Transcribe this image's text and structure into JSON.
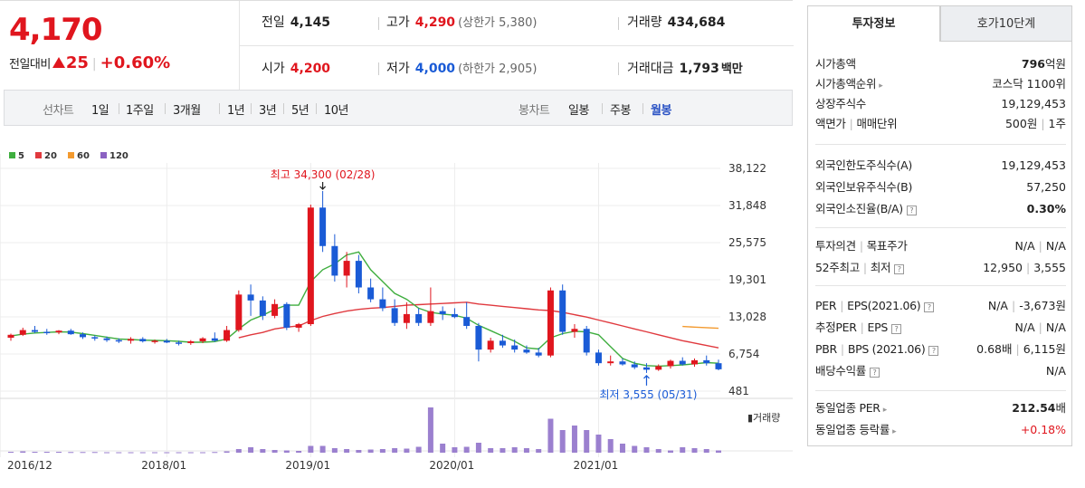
{
  "quote": {
    "price": "4,170",
    "change_label": "전일대비",
    "change_amount": "25",
    "change_pct": "+0.60%",
    "prev_close": {
      "label": "전일",
      "value": "4,145"
    },
    "high": {
      "label": "고가",
      "value": "4,290",
      "sub": "(상한가 5,380)"
    },
    "volume": {
      "label": "거래량",
      "value": "434,684"
    },
    "open": {
      "label": "시가",
      "value": "4,200"
    },
    "low": {
      "label": "저가",
      "value": "4,000",
      "sub": "(하한가 2,905)"
    },
    "amount": {
      "label": "거래대금",
      "value": "1,793",
      "unit": "백만"
    }
  },
  "period_bar": {
    "line_label": "선차트",
    "line_periods": [
      "1일",
      "1주일",
      "3개월",
      "1년",
      "3년",
      "5년",
      "10년"
    ],
    "candle_label": "봉차트",
    "candle_periods": [
      "일봉",
      "주봉",
      "월봉"
    ],
    "active_candle": "월봉"
  },
  "tabs": {
    "active": "투자정보",
    "other": "호가10단계"
  },
  "info": {
    "market_cap": {
      "label": "시가총액",
      "value": "796",
      "unit": "억원"
    },
    "market_cap_rank": {
      "label": "시가총액순위",
      "value": "코스닥 1100위"
    },
    "listed_shares": {
      "label": "상장주식수",
      "value": "19,129,453"
    },
    "face_value": {
      "label1": "액면가",
      "label2": "매매단위",
      "value1": "500원",
      "value2": "1주"
    },
    "foreign_limit": {
      "label": "외국인한도주식수(A)",
      "value": "19,129,453"
    },
    "foreign_hold": {
      "label": "외국인보유주식수(B)",
      "value": "57,250"
    },
    "foreign_ratio": {
      "label": "외국인소진율(B/A)",
      "value": "0.30%"
    },
    "opinion": {
      "label1": "투자의견",
      "label2": "목표주가",
      "value1": "N/A",
      "value2": "N/A"
    },
    "week52": {
      "label1": "52주최고",
      "label2": "최저",
      "value1": "12,950",
      "value2": "3,555"
    },
    "per_eps": {
      "label1": "PER",
      "label2": "EPS(2021.06)",
      "value1": "N/A",
      "value2": "-3,673원"
    },
    "est_per_eps": {
      "label1": "추정PER",
      "label2": "EPS",
      "value1": "N/A",
      "value2": "N/A"
    },
    "pbr_bps": {
      "label1": "PBR",
      "label2": "BPS (2021.06)",
      "value1": "0.68배",
      "value2": "6,115원"
    },
    "dividend": {
      "label": "배당수익률",
      "value": "N/A"
    },
    "sector_per": {
      "label": "동일업종 PER",
      "value": "212.54",
      "unit": "배"
    },
    "sector_chg": {
      "label": "동일업종 등락률",
      "value": "+0.18%"
    }
  },
  "chart_data": {
    "type": "candlestick",
    "interval": "monthly",
    "legend": [
      "5",
      "20",
      "60",
      "120"
    ],
    "legend_colors": [
      "#3fae3f",
      "#e0393e",
      "#f39a2f",
      "#8b62c2"
    ],
    "up_color": "#e0161e",
    "down_color": "#1a5bd6",
    "y_ticks": [
      38122,
      31848,
      25575,
      19301,
      13028,
      6754,
      481
    ],
    "ylim": [
      481,
      38122
    ],
    "x_labels": [
      "2016/12",
      "2018/01",
      "2019/01",
      "2020/01",
      "2021/01"
    ],
    "x_label_index": [
      0,
      13,
      25,
      37,
      49
    ],
    "volume_label": "거래량",
    "max_label": "최고 34,300 (02/28)",
    "max_index": 26,
    "min_label": "최저 3,555 (05/31)",
    "min_index": 53,
    "candles": [
      [
        9500,
        10200,
        9000,
        10000
      ],
      [
        10000,
        11200,
        9800,
        10800
      ],
      [
        10800,
        11500,
        10300,
        10500
      ],
      [
        10500,
        11000,
        10000,
        10400
      ],
      [
        10400,
        10800,
        10100,
        10700
      ],
      [
        10700,
        11000,
        10000,
        10100
      ],
      [
        10100,
        10400,
        9300,
        9600
      ],
      [
        9600,
        9900,
        9000,
        9400
      ],
      [
        9400,
        9700,
        8800,
        9100
      ],
      [
        9100,
        9400,
        8600,
        9000
      ],
      [
        9000,
        9600,
        8500,
        9300
      ],
      [
        9300,
        9600,
        8700,
        8900
      ],
      [
        8900,
        9200,
        8500,
        9000
      ],
      [
        9000,
        9300,
        8600,
        8700
      ],
      [
        8700,
        9000,
        8200,
        8600
      ],
      [
        8600,
        9100,
        8300,
        8900
      ],
      [
        8900,
        9600,
        8600,
        9400
      ],
      [
        9400,
        10400,
        8800,
        9000
      ],
      [
        9000,
        11500,
        8800,
        10800
      ],
      [
        10800,
        17500,
        10500,
        16800
      ],
      [
        16800,
        18500,
        13200,
        15800
      ],
      [
        15800,
        16500,
        12500,
        13200
      ],
      [
        13200,
        16000,
        12800,
        15200
      ],
      [
        15200,
        15500,
        10800,
        11200
      ],
      [
        11200,
        12000,
        10500,
        11800
      ],
      [
        11800,
        32000,
        11500,
        31500
      ],
      [
        31500,
        34300,
        24000,
        25000
      ],
      [
        25000,
        27000,
        19000,
        20000
      ],
      [
        20000,
        24000,
        18000,
        22500
      ],
      [
        22500,
        23500,
        17000,
        18000
      ],
      [
        18000,
        19500,
        15500,
        16000
      ],
      [
        16000,
        18000,
        14000,
        14500
      ],
      [
        14500,
        16000,
        11500,
        12000
      ],
      [
        12000,
        15500,
        11000,
        13500
      ],
      [
        13500,
        14500,
        11500,
        12000
      ],
      [
        12000,
        18000,
        11500,
        14000
      ],
      [
        14000,
        14800,
        12500,
        13500
      ],
      [
        13500,
        14500,
        12800,
        13000
      ],
      [
        13000,
        15500,
        11000,
        11500
      ],
      [
        11500,
        12000,
        5500,
        7500
      ],
      [
        7500,
        9500,
        7000,
        9000
      ],
      [
        9000,
        10000,
        7800,
        8200
      ],
      [
        8200,
        9200,
        7000,
        7500
      ],
      [
        7500,
        8200,
        6800,
        7000
      ],
      [
        7000,
        7800,
        6200,
        6500
      ],
      [
        6500,
        18000,
        6200,
        17500
      ],
      [
        17500,
        18500,
        10000,
        10500
      ],
      [
        10500,
        11800,
        9500,
        11000
      ],
      [
        11000,
        11500,
        6500,
        7000
      ],
      [
        7000,
        7500,
        4800,
        5200
      ],
      [
        5200,
        6500,
        4800,
        5500
      ],
      [
        5500,
        6000,
        4800,
        5000
      ],
      [
        5000,
        5500,
        4200,
        4500
      ],
      [
        4500,
        5200,
        3555,
        4100
      ],
      [
        4100,
        5000,
        3900,
        4700
      ],
      [
        4700,
        5800,
        4300,
        5600
      ],
      [
        5600,
        6200,
        4800,
        5000
      ],
      [
        5000,
        6000,
        4600,
        5700
      ],
      [
        5700,
        6500,
        4800,
        5200
      ],
      [
        5200,
        5800,
        4000,
        4170
      ]
    ],
    "volume": [
      0.2,
      0.3,
      0.2,
      0.2,
      0.2,
      0.15,
      0.15,
      0.15,
      0.1,
      0.1,
      0.1,
      0.1,
      0.1,
      0.1,
      0.1,
      0.1,
      0.1,
      0.15,
      0.3,
      0.8,
      1.2,
      0.8,
      0.6,
      0.5,
      0.4,
      1.5,
      1.5,
      1.0,
      0.8,
      0.6,
      0.7,
      0.8,
      1.0,
      0.9,
      1.3,
      10.0,
      2.0,
      1.2,
      1.3,
      2.2,
      1.0,
      1.0,
      1.2,
      1.0,
      0.8,
      7.5,
      5.0,
      6.0,
      5.0,
      4.0,
      3.0,
      2.0,
      1.5,
      1.2,
      0.8,
      0.5,
      1.2,
      1.0,
      0.8,
      0.5
    ],
    "ma5": [
      9800,
      10100,
      10300,
      10400,
      10500,
      10450,
      10200,
      9900,
      9600,
      9300,
      9200,
      9100,
      9050,
      9000,
      8900,
      8750,
      8750,
      8850,
      9300,
      11000,
      12500,
      13300,
      14300,
      15000,
      15000,
      19000,
      21000,
      22000,
      23500,
      24000,
      21000,
      19000,
      17000,
      16000,
      14500,
      13800,
      13500,
      13300,
      12800,
      11600,
      10700,
      9800,
      8900,
      7800,
      7600,
      9500,
      10200,
      10600,
      10500,
      10000,
      8000,
      6000,
      5200,
      4800,
      4700,
      4800,
      4900,
      5100,
      5300,
      5200
    ],
    "ma20": [
      null,
      null,
      null,
      null,
      null,
      null,
      null,
      null,
      null,
      null,
      null,
      null,
      null,
      null,
      null,
      null,
      null,
      null,
      null,
      9500,
      10000,
      10400,
      11000,
      11300,
      11500,
      12400,
      13100,
      13600,
      14000,
      14300,
      14500,
      14600,
      14800,
      15000,
      15100,
      15200,
      15300,
      15400,
      15500,
      15200,
      15000,
      14800,
      14600,
      14400,
      14200,
      14100,
      13800,
      13400,
      13000,
      12500,
      12000,
      11500,
      11000,
      10500,
      10000,
      9500,
      9000,
      8600,
      8200,
      7800
    ],
    "ma60": [
      null,
      null,
      null,
      null,
      null,
      null,
      null,
      null,
      null,
      null,
      null,
      null,
      null,
      null,
      null,
      null,
      null,
      null,
      null,
      null,
      null,
      null,
      null,
      null,
      null,
      null,
      null,
      null,
      null,
      null,
      null,
      null,
      null,
      null,
      null,
      null,
      null,
      null,
      null,
      null,
      null,
      null,
      null,
      null,
      null,
      null,
      null,
      null,
      null,
      null,
      null,
      null,
      null,
      null,
      null,
      null,
      11400,
      11300,
      11200,
      11100
    ]
  }
}
